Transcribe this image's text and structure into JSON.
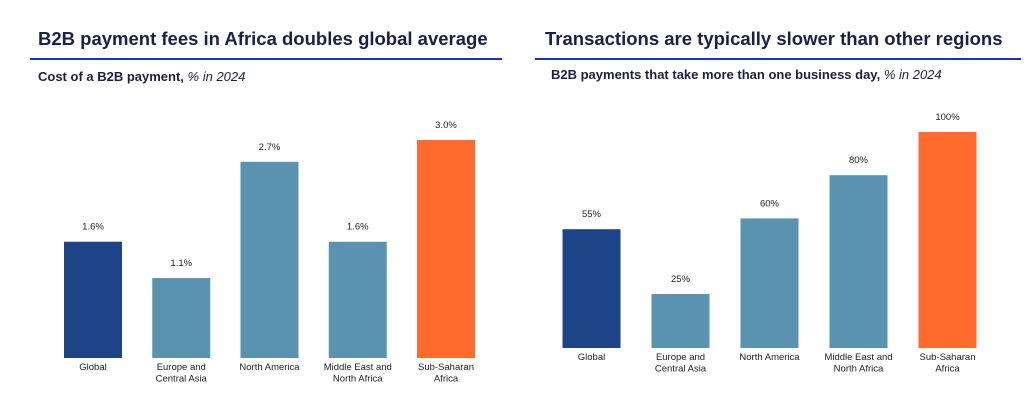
{
  "chart_data": [
    {
      "type": "bar",
      "title": "B2B payment fees in Africa doubles global average",
      "subtitle_bold": "Cost of a B2B payment,",
      "subtitle_italic": "% in 2024",
      "categories": [
        "Global",
        "Europe and Central Asia",
        "North America",
        "Middle East and North Africa",
        "Sub-Saharan Africa"
      ],
      "category_lines": [
        [
          "Global"
        ],
        [
          "Europe and",
          "Central Asia"
        ],
        [
          "North America"
        ],
        [
          "Middle East and",
          "North Africa"
        ],
        [
          "Sub-Saharan",
          "Africa"
        ]
      ],
      "values": [
        1.6,
        1.1,
        2.7,
        1.6,
        3.0
      ],
      "labels": [
        "1.6%",
        "1.1%",
        "2.7%",
        "1.6%",
        "3.0%"
      ],
      "colors": [
        "#1d4487",
        "#5a93b0",
        "#5a93b0",
        "#5a93b0",
        "#ff6b2d"
      ],
      "ylim": [
        0,
        3.0
      ],
      "xlabel": "",
      "ylabel": "",
      "grid": false
    },
    {
      "type": "bar",
      "title": "Transactions are typically slower than other regions",
      "subtitle_bold": "B2B payments that take more than one business day,",
      "subtitle_italic": "% in 2024",
      "categories": [
        "Global",
        "Europe and Central Asia",
        "North America",
        "Middle East and North Africa",
        "Sub-Saharan Africa"
      ],
      "category_lines": [
        [
          "Global"
        ],
        [
          "Europe and",
          "Central Asia"
        ],
        [
          "North America"
        ],
        [
          "Middle East and",
          "North Africa"
        ],
        [
          "Sub-Saharan",
          "Africa"
        ]
      ],
      "values": [
        55,
        25,
        60,
        80,
        100
      ],
      "labels": [
        "55%",
        "25%",
        "60%",
        "80%",
        "100%"
      ],
      "colors": [
        "#1d4487",
        "#5a93b0",
        "#5a93b0",
        "#5a93b0",
        "#ff6b2d"
      ],
      "ylim": [
        0,
        100
      ],
      "xlabel": "",
      "ylabel": "",
      "grid": false
    }
  ]
}
